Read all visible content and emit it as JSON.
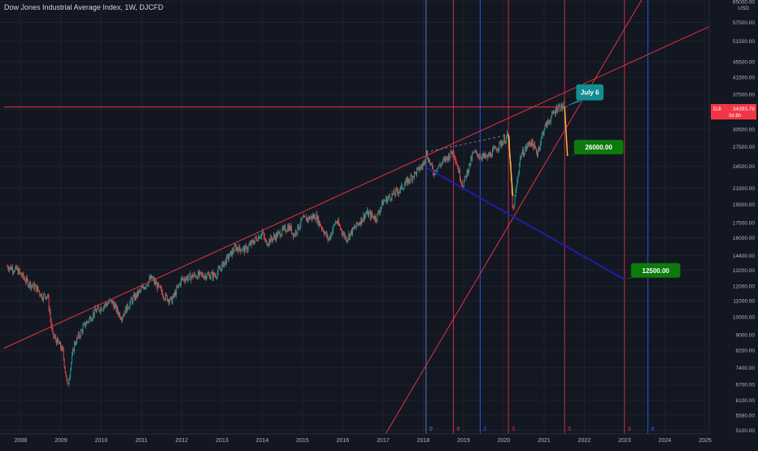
{
  "chart_data": {
    "type": "candlestick",
    "title": "Dow Jones Industrial Average Index, 1W, DJCFD",
    "currency": "USD",
    "scale": "log",
    "grid": true,
    "x_ticks": [
      "2008",
      "2009",
      "2010",
      "2011",
      "2012",
      "2013",
      "2014",
      "2015",
      "2016",
      "2017",
      "2018",
      "2019",
      "2020",
      "2021",
      "2022",
      "2023",
      "2024",
      "2025"
    ],
    "y_ticks": [
      "65000.00",
      "57500.00",
      "51500.00",
      "45500.00",
      "41500.00",
      "37500.00",
      "34393.76",
      "30500.00",
      "27500.00",
      "24500.00",
      "21500.00",
      "19500.00",
      "17500.00",
      "16000.00",
      "14400.00",
      "13200.00",
      "12000.00",
      "11000.00",
      "10000.00",
      "9000.00",
      "8200.00",
      "7400.00",
      "6700.00",
      "6100.00",
      "5580.00",
      "5100.00"
    ],
    "last_price": {
      "symbol": "DJI",
      "value": "34393.76",
      "countdown": "3d 8h",
      "color": "#f23645"
    },
    "series": [
      {
        "values": [
          [
            "2007-09-01",
            13500
          ],
          [
            "2007-12-01",
            13200
          ],
          [
            "2008-03-01",
            12300
          ],
          [
            "2008-06-01",
            11800
          ],
          [
            "2008-07-15",
            11300
          ],
          [
            "2008-09-01",
            11400
          ],
          [
            "2008-10-15",
            9000
          ],
          [
            "2008-12-01",
            8600
          ],
          [
            "2009-01-15",
            8200
          ],
          [
            "2009-03-01",
            6600
          ],
          [
            "2009-05-01",
            8500
          ],
          [
            "2009-08-01",
            9500
          ],
          [
            "2009-11-01",
            10300
          ],
          [
            "2010-04-01",
            11000
          ],
          [
            "2010-07-01",
            10000
          ],
          [
            "2010-10-01",
            11000
          ],
          [
            "2011-04-01",
            12600
          ],
          [
            "2011-08-01",
            11300
          ],
          [
            "2011-10-01",
            11000
          ],
          [
            "2012-01-01",
            12500
          ],
          [
            "2012-05-01",
            12800
          ],
          [
            "2012-11-01",
            12800
          ],
          [
            "2013-05-01",
            15100
          ],
          [
            "2013-08-01",
            14900
          ],
          [
            "2013-12-31",
            16500
          ],
          [
            "2014-02-01",
            15500
          ],
          [
            "2014-09-01",
            17100
          ],
          [
            "2014-10-15",
            16300
          ],
          [
            "2014-12-31",
            17800
          ],
          [
            "2015-05-01",
            18200
          ],
          [
            "2015-08-25",
            15800
          ],
          [
            "2015-11-01",
            17700
          ],
          [
            "2016-02-01",
            15900
          ],
          [
            "2016-08-01",
            18500
          ],
          [
            "2016-11-01",
            18000
          ],
          [
            "2016-12-31",
            19800
          ],
          [
            "2017-06-01",
            21300
          ],
          [
            "2017-12-31",
            24700
          ],
          [
            "2018-01-26",
            26600
          ],
          [
            "2018-04-01",
            23600
          ],
          [
            "2018-10-01",
            26800
          ],
          [
            "2018-12-24",
            21800
          ],
          [
            "2019-04-01",
            26500
          ],
          [
            "2019-08-01",
            25700
          ],
          [
            "2019-12-31",
            28500
          ],
          [
            "2020-02-12",
            29500
          ],
          [
            "2020-03-23",
            18500
          ],
          [
            "2020-06-01",
            26000
          ],
          [
            "2020-09-01",
            28400
          ],
          [
            "2020-10-31",
            26500
          ],
          [
            "2020-12-31",
            30600
          ],
          [
            "2021-03-01",
            32500
          ],
          [
            "2021-05-01",
            34800
          ],
          [
            "2021-07-06",
            34800
          ]
        ]
      }
    ],
    "trendlines": [
      {
        "color": "#e5333f",
        "points": [
          [
            "2007-08-01",
            8300
          ],
          [
            "2025-06-01",
            58000
          ]
        ]
      },
      {
        "color": "#e5333f",
        "points": [
          [
            "2016-12-01",
            4700
          ],
          [
            "2023-08-01",
            70000
          ]
        ]
      },
      {
        "color": "#e5333f",
        "style": "horizontal",
        "points": [
          [
            "2007-08-01",
            34800
          ],
          [
            "2021-08-01",
            34800
          ]
        ]
      },
      {
        "color": "#1b1fa8",
        "points": [
          [
            "2018-01-26",
            24300
          ],
          [
            "2022-12-31",
            12500
          ]
        ]
      },
      {
        "color": "#787b86",
        "style": "dashed",
        "points": [
          [
            "2018-01-26",
            26600
          ],
          [
            "2020-02-12",
            29500
          ]
        ]
      }
    ],
    "drop_lines": [
      {
        "color": "#f5b63f",
        "points": [
          [
            "2020-02-12",
            29500
          ],
          [
            "2020-03-23",
            20500
          ]
        ]
      },
      {
        "color": "#f5b63f",
        "points": [
          [
            "2021-07-06",
            34800
          ],
          [
            "2021-08-01",
            26000
          ]
        ]
      }
    ],
    "vertical_lines": [
      {
        "date": "2018-01-26",
        "color": "#5b8ed9",
        "label": "0"
      },
      {
        "date": "2018-10-01",
        "color": "#e5333f",
        "label": "8"
      },
      {
        "date": "2019-06-01",
        "color": "#2962ff",
        "label": "2"
      },
      {
        "date": "2020-02-12",
        "color": "#e5333f",
        "label": "3"
      },
      {
        "date": "2021-07-06",
        "color": "#e5333f",
        "label": "5"
      },
      {
        "date": "2022-12-31",
        "color": "#e5333f",
        "label": "3"
      },
      {
        "date": "2023-08-01",
        "color": "#2962ff",
        "label": "8"
      }
    ],
    "annotations": [
      {
        "text": "July 6",
        "date": "2021-07-06",
        "value": 34800,
        "color": "#138d95"
      },
      {
        "text": "26000.00",
        "date": "2021-08-01",
        "value": 26000,
        "color": "#0d7a0d"
      },
      {
        "text": "12500.00",
        "date": "2022-12-31",
        "value": 12500,
        "color": "#0d7a0d"
      }
    ]
  }
}
